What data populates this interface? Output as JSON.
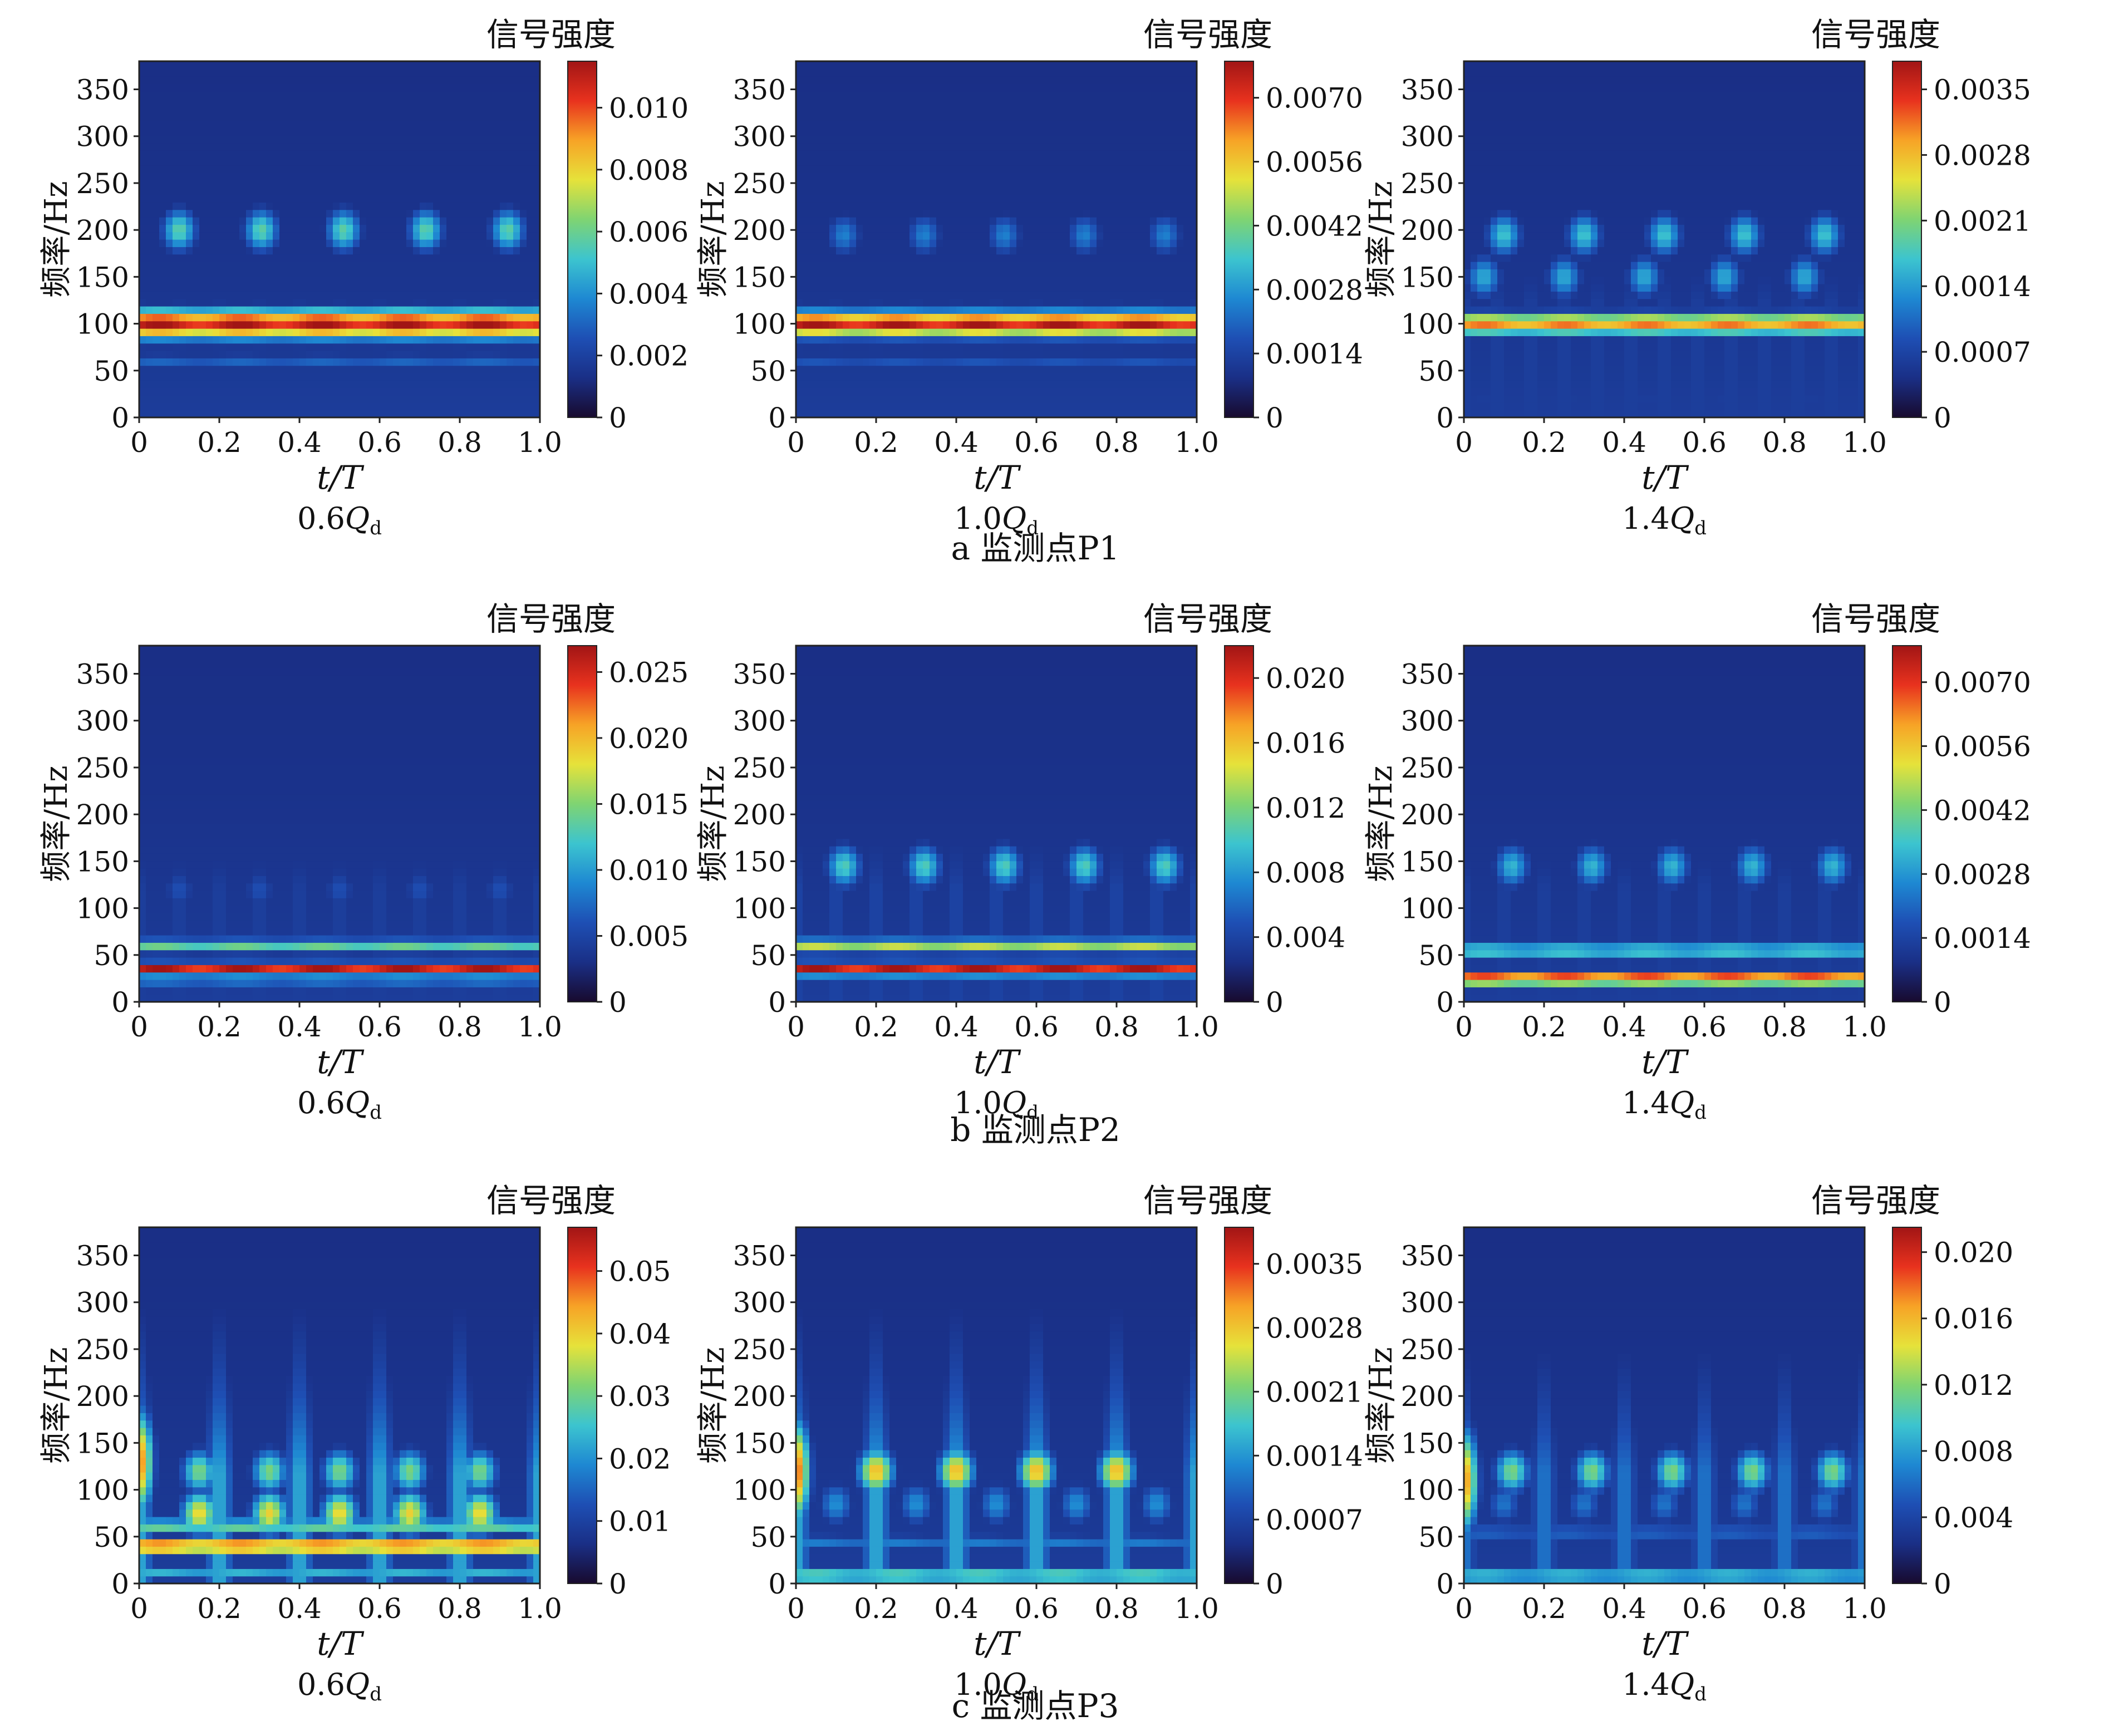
{
  "figure": {
    "row_captions": [
      "a  监测点P1",
      "b  监测点P2",
      "c  监测点P3"
    ]
  },
  "colormap": [
    "#180a2e",
    "#1a2f86",
    "#1e4fb4",
    "#1e88d2",
    "#3cc4cf",
    "#7fd472",
    "#e6e23a",
    "#f7a326",
    "#e8321e",
    "#a11515"
  ],
  "chart_data": [
    {
      "type": "heatmap",
      "row": 0,
      "col": 0,
      "title": "0.6Qd",
      "title_main": "0.6",
      "title_q": "Q",
      "title_sub": "d",
      "xlabel": "t/T",
      "ylabel": "频率/Hz",
      "colorbar_label": "信号强度",
      "xlim": [
        0,
        1.0
      ],
      "ylim": [
        0,
        380
      ],
      "xticks": [
        "0",
        "0.2",
        "0.4",
        "0.6",
        "0.8",
        "1.0"
      ],
      "yticks": [
        "0",
        "50",
        "100",
        "150",
        "200",
        "250",
        "300",
        "350"
      ],
      "colorbar_range": [
        0,
        0.0115
      ],
      "colorbar_ticks": [
        "0",
        "0.002",
        "0.004",
        "0.006",
        "0.008",
        "0.010"
      ],
      "features": [
        {
          "kind": "band",
          "freq": 100,
          "width": 16,
          "level": 0.95
        },
        {
          "kind": "band",
          "freq": 60,
          "width": 10,
          "level": 0.25
        },
        {
          "kind": "band",
          "freq": 25,
          "width": 8,
          "level": 0.12
        },
        {
          "kind": "blobs",
          "freq": 200,
          "count": 5,
          "start": 0.1,
          "end": 0.92,
          "level": 0.5
        },
        {
          "kind": "streaks",
          "count": 10,
          "level": 0.18
        }
      ]
    },
    {
      "type": "heatmap",
      "row": 0,
      "col": 1,
      "title": "1.0Qd",
      "title_main": "1.0",
      "title_q": "Q",
      "title_sub": "d",
      "xlabel": "t/T",
      "ylabel": "频率/Hz",
      "colorbar_label": "信号强度",
      "xlim": [
        0,
        1.0
      ],
      "ylim": [
        0,
        380
      ],
      "xticks": [
        "0",
        "0.2",
        "0.4",
        "0.6",
        "0.8",
        "1.0"
      ],
      "yticks": [
        "0",
        "50",
        "100",
        "150",
        "200",
        "250",
        "300",
        "350"
      ],
      "colorbar_range": [
        0,
        0.0078
      ],
      "colorbar_ticks": [
        "0",
        "0.0014",
        "0.0028",
        "0.0042",
        "0.0056",
        "0.0070"
      ],
      "features": [
        {
          "kind": "band",
          "freq": 100,
          "width": 14,
          "level": 0.95
        },
        {
          "kind": "band",
          "freq": 60,
          "width": 10,
          "level": 0.22
        },
        {
          "kind": "band",
          "freq": 25,
          "width": 8,
          "level": 0.1
        },
        {
          "kind": "blobs",
          "freq": 195,
          "count": 5,
          "start": 0.12,
          "end": 0.92,
          "level": 0.32
        },
        {
          "kind": "streaks",
          "count": 10,
          "level": 0.18
        }
      ]
    },
    {
      "type": "heatmap",
      "row": 0,
      "col": 2,
      "title": "1.4Qd",
      "title_main": "1.4",
      "title_q": "Q",
      "title_sub": "d",
      "xlabel": "t/T",
      "ylabel": "频率/Hz",
      "colorbar_label": "信号强度",
      "xlim": [
        0,
        1.0
      ],
      "ylim": [
        0,
        380
      ],
      "xticks": [
        "0",
        "0.2",
        "0.4",
        "0.6",
        "0.8",
        "1.0"
      ],
      "yticks": [
        "0",
        "50",
        "100",
        "150",
        "200",
        "250",
        "300",
        "350"
      ],
      "colorbar_range": [
        0,
        0.0038
      ],
      "colorbar_ticks": [
        "0",
        "0.0007",
        "0.0014",
        "0.0021",
        "0.0028",
        "0.0035"
      ],
      "features": [
        {
          "kind": "band",
          "freq": 100,
          "width": 12,
          "level": 0.78
        },
        {
          "kind": "blobs",
          "freq": 100,
          "count": 6,
          "start": 0.05,
          "end": 0.95,
          "level": 0.22
        },
        {
          "kind": "blobs",
          "freq": 195,
          "count": 5,
          "start": 0.1,
          "end": 0.9,
          "level": 0.45
        },
        {
          "kind": "blobs",
          "freq": 150,
          "count": 5,
          "start": 0.05,
          "end": 0.85,
          "level": 0.4
        },
        {
          "kind": "band",
          "freq": 20,
          "width": 8,
          "level": 0.15
        },
        {
          "kind": "streaks",
          "count": 12,
          "level": 0.22
        }
      ]
    },
    {
      "type": "heatmap",
      "row": 1,
      "col": 0,
      "title": "0.6Qd",
      "title_main": "0.6",
      "title_q": "Q",
      "title_sub": "d",
      "xlabel": "t/T",
      "ylabel": "频率/Hz",
      "colorbar_label": "信号强度",
      "xlim": [
        0,
        1.0
      ],
      "ylim": [
        0,
        380
      ],
      "xticks": [
        "0",
        "0.2",
        "0.4",
        "0.6",
        "0.8",
        "1.0"
      ],
      "yticks": [
        "0",
        "50",
        "100",
        "150",
        "200",
        "250",
        "300",
        "350"
      ],
      "colorbar_range": [
        0,
        0.027
      ],
      "colorbar_ticks": [
        "0",
        "0.005",
        "0.010",
        "0.015",
        "0.020",
        "0.025"
      ],
      "features": [
        {
          "kind": "band",
          "freq": 35,
          "width": 7,
          "level": 0.95
        },
        {
          "kind": "band",
          "freq": 60,
          "width": 8,
          "level": 0.5
        },
        {
          "kind": "band",
          "freq": 18,
          "width": 6,
          "level": 0.28
        },
        {
          "kind": "blobs",
          "freq": 120,
          "count": 5,
          "start": 0.1,
          "end": 0.9,
          "level": 0.22
        },
        {
          "kind": "streaks",
          "count": 10,
          "level": 0.2
        }
      ]
    },
    {
      "type": "heatmap",
      "row": 1,
      "col": 1,
      "title": "1.0Qd",
      "title_main": "1.0",
      "title_q": "Q",
      "title_sub": "d",
      "xlabel": "t/T",
      "ylabel": "频率/Hz",
      "colorbar_label": "信号强度",
      "xlim": [
        0,
        1.0
      ],
      "ylim": [
        0,
        380
      ],
      "xticks": [
        "0",
        "0.2",
        "0.4",
        "0.6",
        "0.8",
        "1.0"
      ],
      "yticks": [
        "0",
        "50",
        "100",
        "150",
        "200",
        "250",
        "300",
        "350"
      ],
      "colorbar_range": [
        0,
        0.022
      ],
      "colorbar_ticks": [
        "0",
        "0.004",
        "0.008",
        "0.012",
        "0.016",
        "0.020"
      ],
      "features": [
        {
          "kind": "band",
          "freq": 35,
          "width": 7,
          "level": 0.95
        },
        {
          "kind": "band",
          "freq": 60,
          "width": 8,
          "level": 0.6
        },
        {
          "kind": "blobs",
          "freq": 145,
          "count": 5,
          "start": 0.12,
          "end": 0.92,
          "level": 0.48
        },
        {
          "kind": "streaks",
          "count": 10,
          "level": 0.22
        }
      ]
    },
    {
      "type": "heatmap",
      "row": 1,
      "col": 2,
      "title": "1.4Qd",
      "title_main": "1.4",
      "title_q": "Q",
      "title_sub": "d",
      "xlabel": "t/T",
      "ylabel": "频率/Hz",
      "colorbar_label": "信号强度",
      "xlim": [
        0,
        1.0
      ],
      "ylim": [
        0,
        380
      ],
      "xticks": [
        "0",
        "0.2",
        "0.4",
        "0.6",
        "0.8",
        "1.0"
      ],
      "yticks": [
        "0",
        "50",
        "100",
        "150",
        "200",
        "250",
        "300",
        "350"
      ],
      "colorbar_range": [
        0,
        0.0078
      ],
      "colorbar_ticks": [
        "0",
        "0.0014",
        "0.0028",
        "0.0042",
        "0.0056",
        "0.0070"
      ],
      "features": [
        {
          "kind": "band",
          "freq": 25,
          "width": 7,
          "level": 0.95
        },
        {
          "kind": "band",
          "freq": 55,
          "width": 8,
          "level": 0.5
        },
        {
          "kind": "blobs",
          "freq": 145,
          "count": 5,
          "start": 0.12,
          "end": 0.92,
          "level": 0.42
        },
        {
          "kind": "streaks",
          "count": 10,
          "level": 0.2
        }
      ]
    },
    {
      "type": "heatmap",
      "row": 2,
      "col": 0,
      "title": "0.6Qd",
      "title_main": "0.6",
      "title_q": "Q",
      "title_sub": "d",
      "xlabel": "t/T",
      "ylabel": "频率/Hz",
      "colorbar_label": "信号强度",
      "xlim": [
        0,
        1.0
      ],
      "ylim": [
        0,
        380
      ],
      "xticks": [
        "0",
        "0.2",
        "0.4",
        "0.6",
        "0.8",
        "1.0"
      ],
      "yticks": [
        "0",
        "50",
        "100",
        "150",
        "200",
        "250",
        "300",
        "350"
      ],
      "colorbar_range": [
        0,
        0.057
      ],
      "colorbar_ticks": [
        "0",
        "0.01",
        "0.02",
        "0.03",
        "0.04",
        "0.05"
      ],
      "features": [
        {
          "kind": "band",
          "freq": 40,
          "width": 8,
          "level": 0.9
        },
        {
          "kind": "band",
          "freq": 62,
          "width": 7,
          "level": 0.55
        },
        {
          "kind": "band",
          "freq": 10,
          "width": 5,
          "level": 0.45
        },
        {
          "kind": "blobs",
          "freq": 75,
          "count": 5,
          "start": 0.15,
          "end": 0.85,
          "level": 0.7
        },
        {
          "kind": "blobs",
          "freq": 120,
          "count": 5,
          "start": 0.15,
          "end": 0.85,
          "level": 0.55
        },
        {
          "kind": "edge",
          "freq": 130,
          "level": 0.82
        },
        {
          "kind": "streaks",
          "count": 5,
          "level": 0.4
        }
      ]
    },
    {
      "type": "heatmap",
      "row": 2,
      "col": 1,
      "title": "1.0Qd",
      "title_main": "1.0",
      "title_q": "Q",
      "title_sub": "d",
      "xlabel": "t/T",
      "ylabel": "频率/Hz",
      "colorbar_label": "信号强度",
      "xlim": [
        0,
        1.0
      ],
      "ylim": [
        0,
        380
      ],
      "xticks": [
        "0",
        "0.2",
        "0.4",
        "0.6",
        "0.8",
        "1.0"
      ],
      "yticks": [
        "0",
        "50",
        "100",
        "150",
        "200",
        "250",
        "300",
        "350"
      ],
      "colorbar_range": [
        0,
        0.0039
      ],
      "colorbar_ticks": [
        "0",
        "0.0007",
        "0.0014",
        "0.0021",
        "0.0028",
        "0.0035"
      ],
      "features": [
        {
          "kind": "band",
          "freq": 8,
          "width": 5,
          "level": 0.8
        },
        {
          "kind": "band",
          "freq": 45,
          "width": 8,
          "level": 0.3
        },
        {
          "kind": "blobs",
          "freq": 120,
          "count": 4,
          "start": 0.2,
          "end": 0.8,
          "level": 0.75
        },
        {
          "kind": "blobs",
          "freq": 85,
          "count": 5,
          "start": 0.1,
          "end": 0.9,
          "level": 0.35
        },
        {
          "kind": "edge",
          "freq": 120,
          "level": 0.85
        },
        {
          "kind": "streaks",
          "count": 5,
          "level": 0.4
        }
      ]
    },
    {
      "type": "heatmap",
      "row": 2,
      "col": 2,
      "title": "1.4Qd",
      "title_main": "1.4",
      "title_q": "Q",
      "title_sub": "d",
      "xlabel": "t/T",
      "ylabel": "频率/Hz",
      "colorbar_label": "信号强度",
      "xlim": [
        0,
        1.0
      ],
      "ylim": [
        0,
        380
      ],
      "xticks": [
        "0",
        "0.2",
        "0.4",
        "0.6",
        "0.8",
        "1.0"
      ],
      "yticks": [
        "0",
        "50",
        "100",
        "150",
        "200",
        "250",
        "300",
        "350"
      ],
      "colorbar_range": [
        0,
        0.0215
      ],
      "colorbar_ticks": [
        "0",
        "0.004",
        "0.008",
        "0.012",
        "0.016",
        "0.020"
      ],
      "features": [
        {
          "kind": "band",
          "freq": 8,
          "width": 5,
          "level": 0.7
        },
        {
          "kind": "band",
          "freq": 55,
          "width": 7,
          "level": 0.3
        },
        {
          "kind": "blobs",
          "freq": 120,
          "count": 5,
          "start": 0.12,
          "end": 0.92,
          "level": 0.55
        },
        {
          "kind": "blobs",
          "freq": 85,
          "count": 5,
          "start": 0.1,
          "end": 0.9,
          "level": 0.3
        },
        {
          "kind": "edge",
          "freq": 110,
          "level": 0.8
        },
        {
          "kind": "streaks",
          "count": 5,
          "level": 0.3
        }
      ]
    }
  ]
}
